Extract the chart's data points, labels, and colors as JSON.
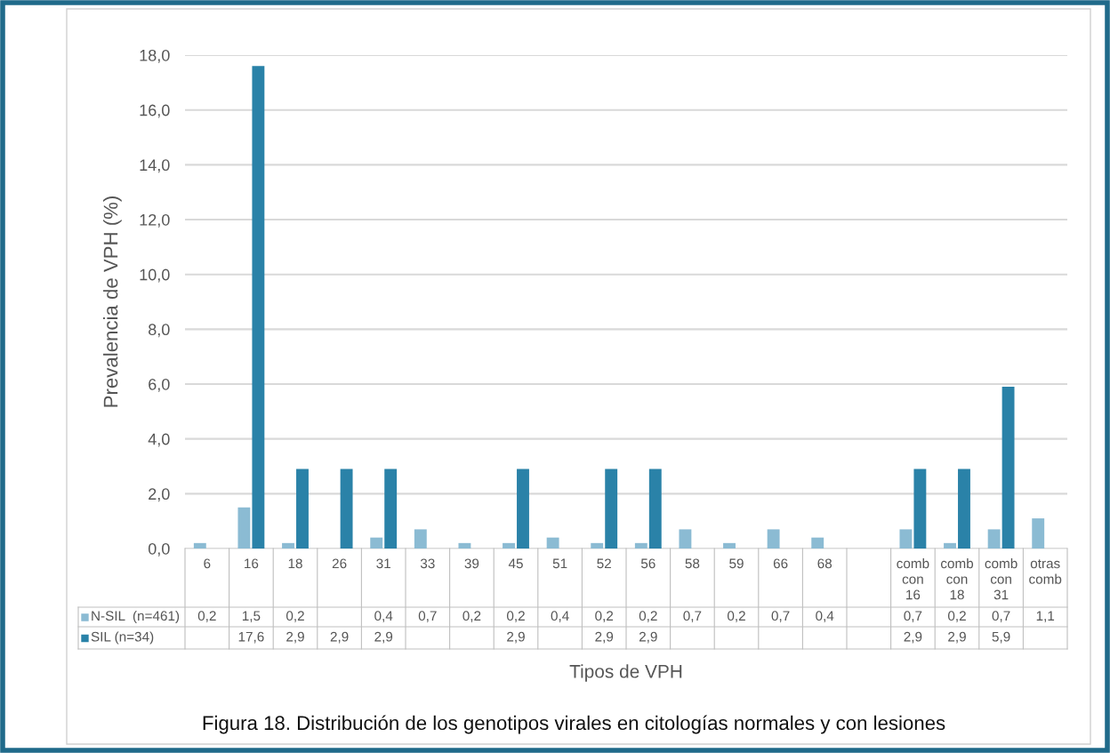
{
  "chart_data": {
    "type": "bar",
    "ylabel": "Prevalencia de VPH (%)",
    "xlabel": "Tipos de VPH",
    "categories": [
      "6",
      "16",
      "18",
      "26",
      "31",
      "33",
      "39",
      "45",
      "51",
      "52",
      "56",
      "58",
      "59",
      "66",
      "68",
      null,
      "comb con 16",
      "comb con 18",
      "comb con 31",
      "otras comb"
    ],
    "series": [
      {
        "name": "N-SIL  (n=461)",
        "color": "#8bbbd3",
        "values": [
          0.2,
          1.5,
          0.2,
          null,
          0.4,
          0.7,
          0.2,
          0.2,
          0.4,
          0.2,
          0.2,
          0.7,
          0.2,
          0.7,
          0.4,
          null,
          0.7,
          0.2,
          0.7,
          1.1
        ],
        "value_labels": [
          "0,2",
          "1,5",
          "0,2",
          null,
          "0,4",
          "0,7",
          "0,2",
          "0,2",
          "0,4",
          "0,2",
          "0,2",
          "0,7",
          "0,2",
          "0,7",
          "0,4",
          null,
          "0,7",
          "0,2",
          "0,7",
          "1,1"
        ]
      },
      {
        "name": "SIL (n=34)",
        "color": "#2a82a8",
        "values": [
          null,
          17.6,
          2.9,
          2.9,
          2.9,
          null,
          null,
          2.9,
          null,
          2.9,
          2.9,
          null,
          null,
          null,
          null,
          null,
          2.9,
          2.9,
          5.9,
          null
        ],
        "value_labels": [
          null,
          "17,6",
          "2,9",
          "2,9",
          "2,9",
          null,
          null,
          "2,9",
          null,
          "2,9",
          "2,9",
          null,
          null,
          null,
          null,
          null,
          "2,9",
          "2,9",
          "5,9",
          null
        ]
      }
    ],
    "ylim": [
      0,
      18
    ],
    "yticks": [
      {
        "value": 0,
        "label": "0,0"
      },
      {
        "value": 2,
        "label": "2,0"
      },
      {
        "value": 4,
        "label": "4,0"
      },
      {
        "value": 6,
        "label": "6,0"
      },
      {
        "value": 8,
        "label": "8,0"
      },
      {
        "value": 10,
        "label": "10,0"
      },
      {
        "value": 12,
        "label": "12,0"
      },
      {
        "value": 14,
        "label": "14,0"
      },
      {
        "value": 16,
        "label": "16,0"
      },
      {
        "value": 18,
        "label": "18,0"
      }
    ],
    "grid": "y",
    "legend": "bottom",
    "annotations": [
      "Figura 18. Distribución de los genotipos virales en citologías normales y con lesiones"
    ]
  }
}
